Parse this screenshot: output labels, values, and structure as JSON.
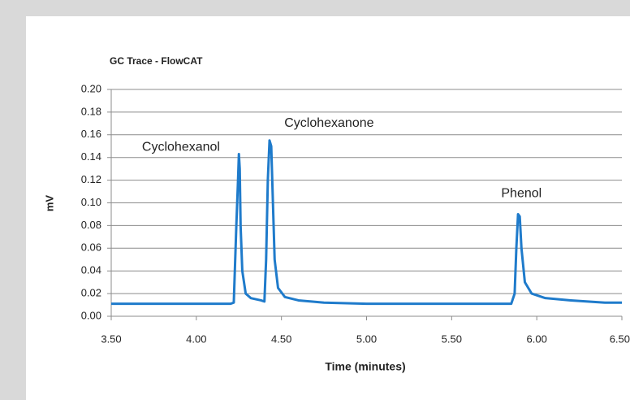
{
  "chart_data": {
    "type": "line",
    "title": "GC Trace - FlowCAT",
    "x_label": "Time (minutes)",
    "y_label": "mV",
    "x": [
      3.5,
      4.0,
      4.2,
      4.22,
      4.235,
      4.245,
      4.25,
      4.255,
      4.26,
      4.27,
      4.29,
      4.32,
      4.38,
      4.4,
      4.41,
      4.42,
      4.43,
      4.44,
      4.45,
      4.46,
      4.48,
      4.52,
      4.6,
      4.75,
      5.0,
      5.5,
      5.85,
      5.87,
      5.88,
      5.89,
      5.9,
      5.91,
      5.93,
      5.97,
      6.05,
      6.2,
      6.4,
      6.5
    ],
    "series": [
      {
        "name": "GC Trace",
        "color": "#1f7bcb",
        "values": [
          0.011,
          0.011,
          0.011,
          0.012,
          0.08,
          0.12,
          0.143,
          0.13,
          0.08,
          0.04,
          0.02,
          0.016,
          0.014,
          0.013,
          0.05,
          0.12,
          0.155,
          0.15,
          0.1,
          0.05,
          0.025,
          0.017,
          0.014,
          0.012,
          0.011,
          0.011,
          0.011,
          0.02,
          0.06,
          0.09,
          0.088,
          0.06,
          0.03,
          0.02,
          0.016,
          0.014,
          0.012,
          0.012
        ]
      }
    ],
    "annotations": [
      {
        "text": "Cyclohexanol",
        "x": 3.91,
        "y": 0.149
      },
      {
        "text": "Cyclohexanone",
        "x": 4.78,
        "y": 0.17
      },
      {
        "text": "Phenol",
        "x": 5.91,
        "y": 0.108
      }
    ],
    "xlim": [
      3.5,
      6.5
    ],
    "xticks": [
      {
        "value": 3.5,
        "label": "3.50"
      },
      {
        "value": 4.0,
        "label": "4.00"
      },
      {
        "value": 4.5,
        "label": "4.50"
      },
      {
        "value": 5.0,
        "label": "5.00"
      },
      {
        "value": 5.5,
        "label": "5.50"
      },
      {
        "value": 6.0,
        "label": "6.00"
      },
      {
        "value": 6.5,
        "label": "6.50"
      }
    ],
    "ylim": [
      0,
      0.2
    ],
    "yticks": [
      {
        "value": 0,
        "label": "0.00"
      },
      {
        "value": 0.02,
        "label": "0.02"
      },
      {
        "value": 0.04,
        "label": "0.04"
      },
      {
        "value": 0.06,
        "label": "0.06"
      },
      {
        "value": 0.08,
        "label": "0.08"
      },
      {
        "value": 0.1,
        "label": "0.10"
      },
      {
        "value": 0.12,
        "label": "0.12"
      },
      {
        "value": 0.14,
        "label": "0.14"
      },
      {
        "value": 0.16,
        "label": "0.16"
      },
      {
        "value": 0.18,
        "label": "0.18"
      },
      {
        "value": 0.2,
        "label": "0.20"
      }
    ],
    "grid": true
  }
}
